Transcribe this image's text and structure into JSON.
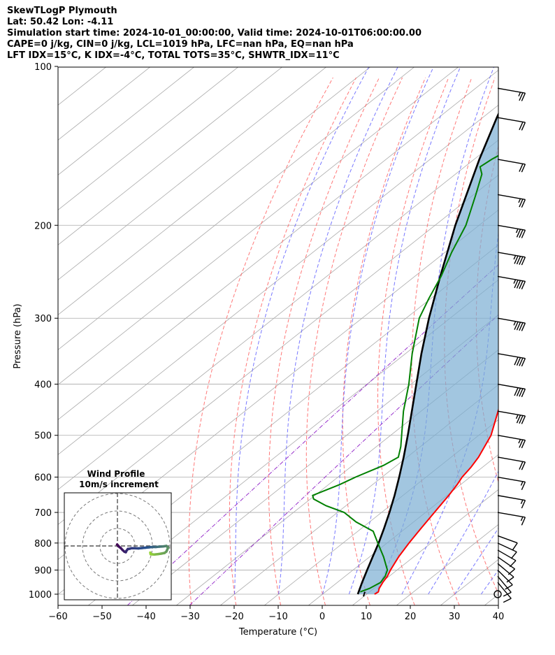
{
  "header": {
    "line1": "SkewTLogP Plymouth",
    "line2": "Lat: 50.42   Lon: -4.11",
    "line3": "Simulation start time: 2024-10-01_00:00:00, Valid time: 2024-10-01T06:00:00.00",
    "line4": "CAPE=0 j/kg, CIN=0 j/kg, LCL=1019 hPa, LFC=nan hPa, EQ=nan hPa",
    "line5": "LFT IDX=15°C, K IDX=-4°C, TOTAL TOTS=35°C, SHWTR_IDX=11°C"
  },
  "colors": {
    "temperature": "#ff0000",
    "dewpoint": "#008000",
    "parcel": "#000000",
    "cape_fill": "#7aaed3",
    "dry_adiabat": "#ff6060",
    "moist_adiabat": "#6060ff",
    "mixing_ratio": "#9933cc",
    "isotherm": "#aaaaaa"
  },
  "chart_data": [
    {
      "type": "line",
      "title": "SkewTLogP Plymouth",
      "xlabel": "Temperature (°C)",
      "ylabel": "Pressure (hPa)",
      "xlim": [
        -60,
        40
      ],
      "ylim": [
        1050,
        100
      ],
      "y_scale": "log",
      "skew": true,
      "x_ticks": [
        "−60",
        "−50",
        "−40",
        "−30",
        "−20",
        "−10",
        "0",
        "10",
        "20",
        "30",
        "40"
      ],
      "y_ticks": [
        "100",
        "200",
        "300",
        "400",
        "500",
        "600",
        "700",
        "800",
        "900",
        "1000"
      ],
      "grid": true,
      "series": [
        {
          "name": "temperature",
          "points": [
            [
              1000,
              11.8
            ],
            [
              990,
              12
            ],
            [
              975,
              11.2
            ],
            [
              950,
              10.3
            ],
            [
              925,
              9.6
            ],
            [
              900,
              8.5
            ],
            [
              850,
              6.6
            ],
            [
              800,
              5
            ],
            [
              750,
              3.5
            ],
            [
              700,
              2
            ],
            [
              650,
              0.4
            ],
            [
              620,
              -0.8
            ],
            [
              600,
              -1.8
            ],
            [
              575,
              -2.6
            ],
            [
              550,
              -3.8
            ],
            [
              500,
              -7.2
            ],
            [
              450,
              -12.5
            ],
            [
              400,
              -18.5
            ],
            [
              350,
              -25.8
            ],
            [
              300,
              -34.5
            ],
            [
              275,
              -39.5
            ],
            [
              250,
              -45
            ],
            [
              225,
              -51
            ],
            [
              210,
              -54.5
            ],
            [
              200,
              -56.3
            ],
            [
              180,
              -58.7
            ],
            [
              160,
              -61.2
            ],
            [
              140,
              -64.2
            ],
            [
              120,
              -68.3
            ],
            [
              110,
              -71.4
            ],
            [
              100,
              -74.9
            ]
          ]
        },
        {
          "name": "dewpoint",
          "points": [
            [
              990,
              7.9
            ],
            [
              975,
              9
            ],
            [
              950,
              9.8
            ],
            [
              925,
              9.1
            ],
            [
              900,
              7.8
            ],
            [
              850,
              3.2
            ],
            [
              800,
              -2.1
            ],
            [
              760,
              -6.5
            ],
            [
              730,
              -13
            ],
            [
              700,
              -18.5
            ],
            [
              680,
              -24.5
            ],
            [
              660,
              -29.3
            ],
            [
              650,
              -30.5
            ],
            [
              620,
              -27.5
            ],
            [
              600,
              -26
            ],
            [
              570,
              -23
            ],
            [
              550,
              -22
            ],
            [
              525,
              -24.5
            ],
            [
              500,
              -27.5
            ],
            [
              450,
              -34
            ],
            [
              400,
              -40.5
            ],
            [
              350,
              -48.5
            ],
            [
              300,
              -57
            ],
            [
              275,
              -60.5
            ],
            [
              250,
              -64
            ],
            [
              225,
              -68.5
            ],
            [
              200,
              -73
            ],
            [
              190,
              -75.5
            ],
            [
              175,
              -79.5
            ],
            [
              160,
              -84
            ],
            [
              155,
              -86.5
            ],
            [
              150,
              -86
            ],
            [
              140,
              -84
            ],
            [
              130,
              -82
            ],
            [
              120,
              -80
            ],
            [
              110,
              -78
            ],
            [
              100,
              -76
            ]
          ]
        },
        {
          "name": "parcel",
          "points": [
            [
              1000,
              8
            ],
            [
              950,
              5.6
            ],
            [
              900,
              3.2
            ],
            [
              850,
              0.7
            ],
            [
              800,
              -1.9
            ],
            [
              750,
              -4.9
            ],
            [
              700,
              -8.2
            ],
            [
              650,
              -11.9
            ],
            [
              600,
              -16.1
            ],
            [
              550,
              -20.8
            ],
            [
              500,
              -26.1
            ],
            [
              450,
              -32.1
            ],
            [
              400,
              -38.8
            ],
            [
              350,
              -46.4
            ],
            [
              300,
              -54.8
            ],
            [
              250,
              -64.2
            ],
            [
              200,
              -75.4
            ],
            [
              150,
              -88.8
            ],
            [
              125,
              -96.8
            ],
            [
              100,
              -106
            ]
          ]
        }
      ],
      "wind_barbs": [
        {
          "p": 1000,
          "calm": true
        },
        {
          "p": 950,
          "speed_kt": 10,
          "dir": 320
        },
        {
          "p": 925,
          "speed_kt": 10,
          "dir": 320
        },
        {
          "p": 900,
          "speed_kt": 10,
          "dir": 315
        },
        {
          "p": 875,
          "speed_kt": 10,
          "dir": 310
        },
        {
          "p": 850,
          "speed_kt": 10,
          "dir": 305
        },
        {
          "p": 825,
          "speed_kt": 10,
          "dir": 300
        },
        {
          "p": 800,
          "speed_kt": 10,
          "dir": 295
        },
        {
          "p": 775,
          "speed_kt": 10,
          "dir": 290
        },
        {
          "p": 700,
          "speed_kt": 15,
          "dir": 280
        },
        {
          "p": 650,
          "speed_kt": 15,
          "dir": 280
        },
        {
          "p": 600,
          "speed_kt": 15,
          "dir": 280
        },
        {
          "p": 550,
          "speed_kt": 20,
          "dir": 280
        },
        {
          "p": 500,
          "speed_kt": 25,
          "dir": 280
        },
        {
          "p": 450,
          "speed_kt": 35,
          "dir": 280
        },
        {
          "p": 400,
          "speed_kt": 40,
          "dir": 280
        },
        {
          "p": 350,
          "speed_kt": 40,
          "dir": 280
        },
        {
          "p": 300,
          "speed_kt": 45,
          "dir": 280
        },
        {
          "p": 250,
          "speed_kt": 45,
          "dir": 280
        },
        {
          "p": 225,
          "speed_kt": 45,
          "dir": 280
        },
        {
          "p": 200,
          "speed_kt": 35,
          "dir": 280
        },
        {
          "p": 175,
          "speed_kt": 25,
          "dir": 280
        },
        {
          "p": 150,
          "speed_kt": 20,
          "dir": 280
        },
        {
          "p": 125,
          "speed_kt": 20,
          "dir": 280
        },
        {
          "p": 110,
          "speed_kt": 25,
          "dir": 280
        }
      ]
    },
    {
      "type": "scatter",
      "title": "Wind Profile",
      "subtitle": "10m/s increment",
      "rings_ms": [
        10,
        20,
        30
      ],
      "hodograph": [
        [
          -0.2,
          0.8
        ],
        [
          0.3,
          0.3
        ],
        [
          1,
          -0.5
        ],
        [
          2,
          -1.3
        ],
        [
          3,
          -2.4
        ],
        [
          4,
          -3.3
        ],
        [
          4.8,
          -3.6
        ],
        [
          5,
          -3
        ],
        [
          6,
          -1.7
        ],
        [
          7,
          -1.6
        ],
        [
          8,
          -1.3
        ],
        [
          10,
          -1.3
        ],
        [
          12,
          -1.4
        ],
        [
          14,
          -1.2
        ],
        [
          16,
          -1
        ],
        [
          18,
          -0.8
        ],
        [
          20,
          -0.6
        ],
        [
          22,
          -0.6
        ],
        [
          24,
          -0.4
        ],
        [
          26,
          -0.3
        ],
        [
          28,
          0
        ],
        [
          29,
          -1
        ],
        [
          28,
          -3.2
        ],
        [
          27,
          -4
        ],
        [
          25,
          -4.4
        ],
        [
          23,
          -4.7
        ],
        [
          21,
          -4.9
        ],
        [
          20,
          -4.8
        ],
        [
          19,
          -4.7
        ],
        [
          18.8,
          -3.8
        ]
      ]
    }
  ]
}
